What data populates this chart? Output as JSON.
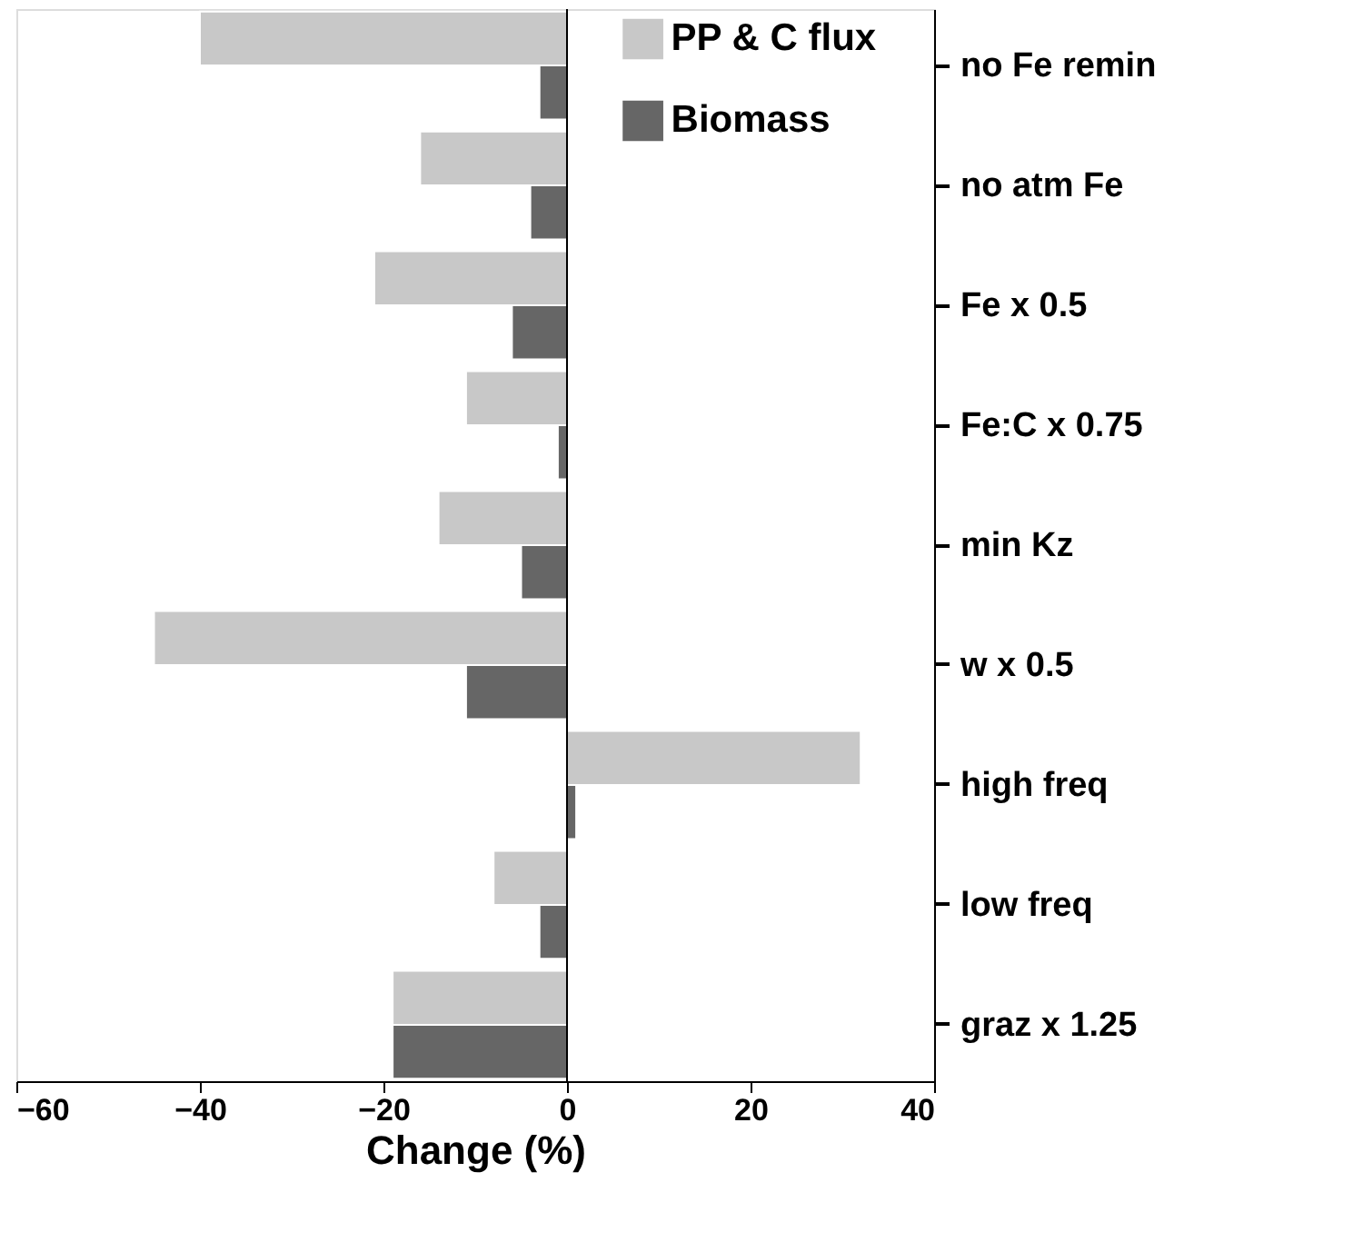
{
  "chart_data": {
    "type": "bar",
    "orientation": "horizontal",
    "xlabel": "Change (%)",
    "categories": [
      "no Fe remin",
      "no atm Fe",
      "Fe x 0.5",
      "Fe:C x 0.75",
      "min Kz",
      "w x 0.5",
      "high freq",
      "low freq",
      "graz x 1.25"
    ],
    "series": [
      {
        "name": "PP & C flux",
        "color": "#c8c8c8",
        "values": [
          -40,
          -16,
          -21,
          -11,
          -14,
          -45,
          32,
          -8,
          -19
        ]
      },
      {
        "name": "Biomass",
        "color": "#666666",
        "values": [
          -3,
          -4,
          -6,
          -1,
          -5,
          -11,
          1,
          -3,
          -19
        ]
      }
    ],
    "xlim": [
      -60,
      40
    ],
    "xticks": [
      -60,
      -40,
      -20,
      0,
      20,
      40
    ],
    "ref_lines": [
      {
        "axis": "x",
        "value": 0,
        "label": null,
        "color": "#000000"
      }
    ],
    "legend": "top",
    "grid": false
  }
}
